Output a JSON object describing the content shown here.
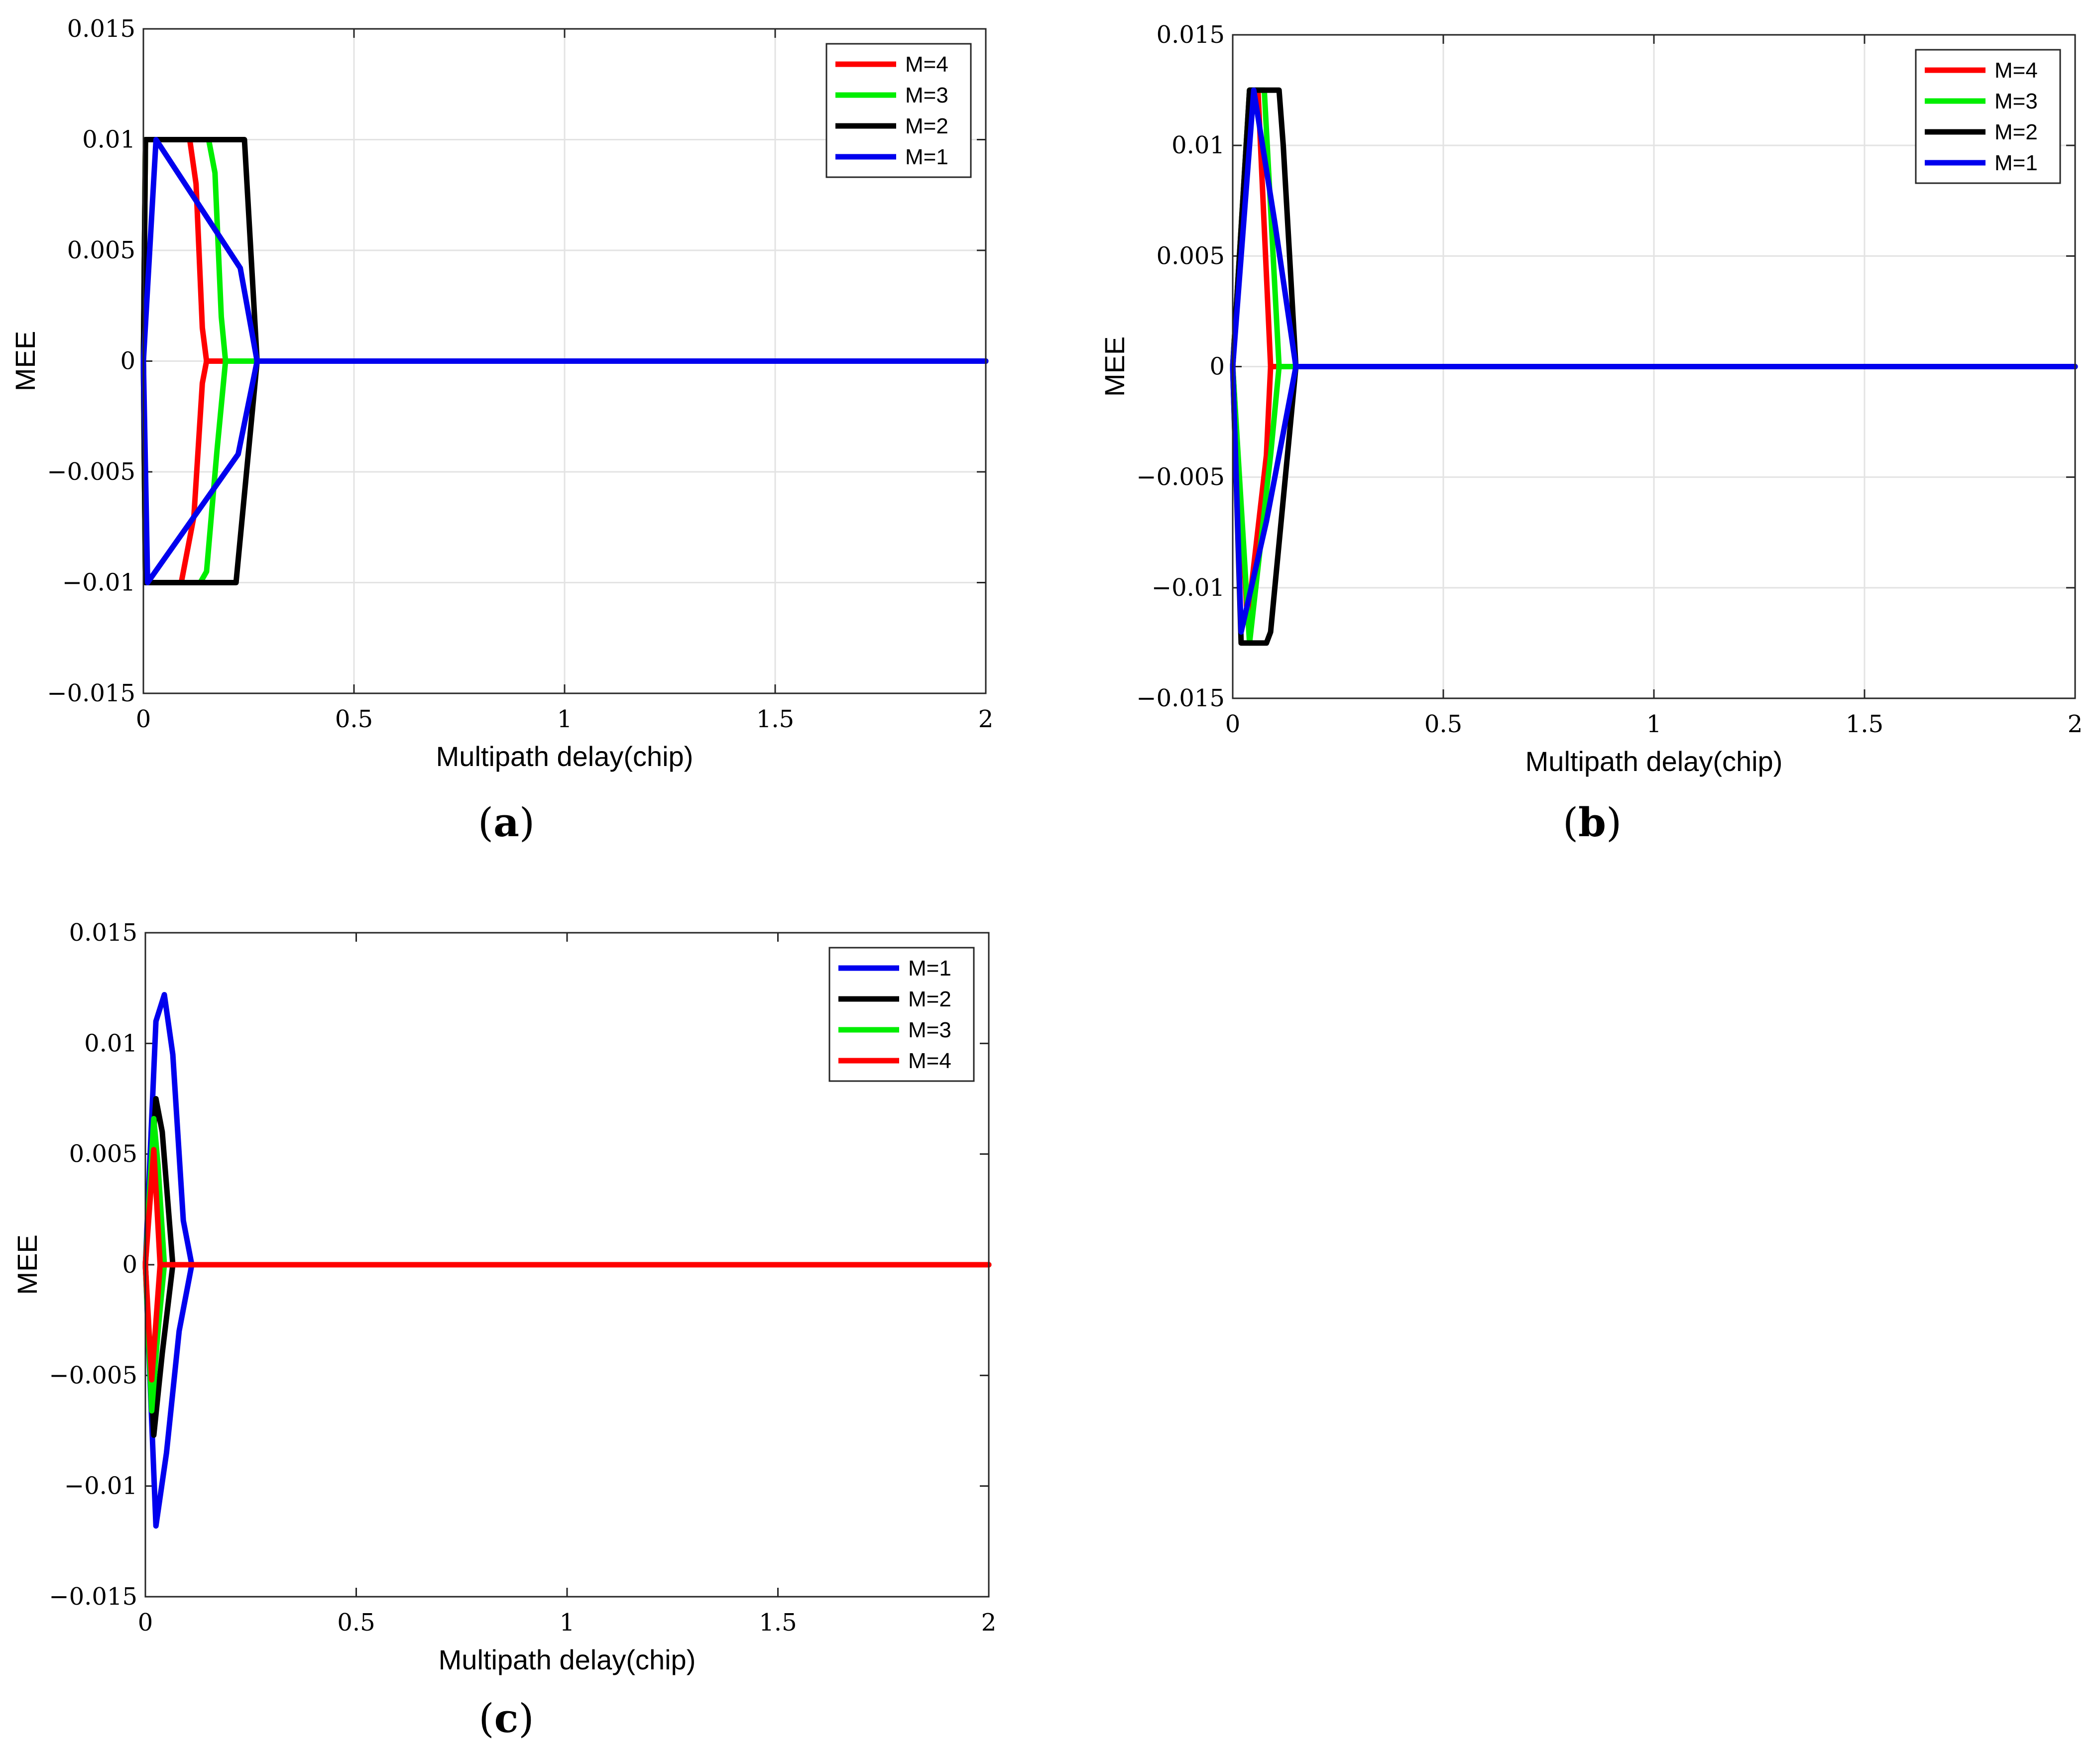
{
  "chart_data": [
    {
      "type": "line",
      "panel": "a",
      "caption_letter": "a",
      "xlabel": "Multipath delay(chip)",
      "ylabel": "MEE",
      "xlim": [
        0,
        2
      ],
      "ylim": [
        -0.015,
        0.015
      ],
      "grid": true,
      "legend_position": "top-right",
      "xticks": [
        0,
        0.5,
        1,
        1.5,
        2
      ],
      "xtick_labels": [
        "0",
        "0.5",
        "1",
        "1.5",
        "2"
      ],
      "yticks": [
        -0.015,
        -0.01,
        -0.005,
        0,
        0.005,
        0.01,
        0.015
      ],
      "ytick_labels": [
        "−0.015",
        "−0.01",
        "−0.005",
        "0",
        "0.005",
        "0.01",
        "0.015"
      ],
      "series": [
        {
          "name": "M=4",
          "color": "#ff0000",
          "upper": [
            [
              0,
              0
            ],
            [
              0.005,
              0.01
            ],
            [
              0.11,
              0.01
            ],
            [
              0.125,
              0.008
            ],
            [
              0.14,
              0.0015
            ],
            [
              0.15,
              0
            ],
            [
              2,
              0
            ]
          ],
          "lower": [
            [
              0,
              0
            ],
            [
              0.005,
              -0.01
            ],
            [
              0.09,
              -0.01
            ],
            [
              0.12,
              -0.007
            ],
            [
              0.14,
              -0.001
            ],
            [
              0.15,
              0
            ]
          ]
        },
        {
          "name": "M=3",
          "color": "#00ee00",
          "upper": [
            [
              0,
              0
            ],
            [
              0.005,
              0.01
            ],
            [
              0.155,
              0.01
            ],
            [
              0.17,
              0.0085
            ],
            [
              0.185,
              0.002
            ],
            [
              0.195,
              0
            ],
            [
              2,
              0
            ]
          ],
          "lower": [
            [
              0,
              0
            ],
            [
              0.005,
              -0.01
            ],
            [
              0.135,
              -0.01
            ],
            [
              0.15,
              -0.0095
            ],
            [
              0.175,
              -0.004
            ],
            [
              0.195,
              0
            ]
          ]
        },
        {
          "name": "M=2",
          "color": "#000000",
          "upper": [
            [
              0,
              0
            ],
            [
              0.005,
              0.01
            ],
            [
              0.24,
              0.01
            ],
            [
              0.27,
              0
            ],
            [
              2,
              0
            ]
          ],
          "lower": [
            [
              0,
              0
            ],
            [
              0.005,
              -0.01
            ],
            [
              0.22,
              -0.01
            ],
            [
              0.27,
              0
            ]
          ]
        },
        {
          "name": "M=1",
          "color": "#0000ee",
          "upper": [
            [
              0,
              0
            ],
            [
              0.03,
              0.01
            ],
            [
              0.23,
              0.0042
            ],
            [
              0.27,
              0
            ],
            [
              2,
              0
            ]
          ],
          "lower": [
            [
              0,
              0
            ],
            [
              0.01,
              -0.01
            ],
            [
              0.225,
              -0.0042
            ],
            [
              0.27,
              0
            ]
          ]
        }
      ]
    },
    {
      "type": "line",
      "panel": "b",
      "caption_letter": "b",
      "xlabel": "Multipath delay(chip)",
      "ylabel": "MEE",
      "xlim": [
        0,
        2
      ],
      "ylim": [
        -0.015,
        0.015
      ],
      "grid": true,
      "legend_position": "top-right",
      "xticks": [
        0,
        0.5,
        1,
        1.5,
        2
      ],
      "xtick_labels": [
        "0",
        "0.5",
        "1",
        "1.5",
        "2"
      ],
      "yticks": [
        -0.015,
        -0.01,
        -0.005,
        0,
        0.005,
        0.01,
        0.015
      ],
      "ytick_labels": [
        "−0.015",
        "−0.01",
        "−0.005",
        "0",
        "0.005",
        "0.01",
        "0.015"
      ],
      "series": [
        {
          "name": "M=4",
          "color": "#ff0000",
          "upper": [
            [
              0,
              0
            ],
            [
              0.04,
              0.0125
            ],
            [
              0.06,
              0.0125
            ],
            [
              0.09,
              0
            ],
            [
              2,
              0
            ]
          ],
          "lower": [
            [
              0,
              0
            ],
            [
              0.035,
              -0.0115
            ],
            [
              0.08,
              -0.004
            ],
            [
              0.09,
              0
            ]
          ]
        },
        {
          "name": "M=3",
          "color": "#00ee00",
          "upper": [
            [
              0,
              0
            ],
            [
              0.04,
              0.0125
            ],
            [
              0.075,
              0.0125
            ],
            [
              0.11,
              0
            ],
            [
              2,
              0
            ]
          ],
          "lower": [
            [
              0,
              0
            ],
            [
              0.04,
              -0.0125
            ],
            [
              0.09,
              -0.004
            ],
            [
              0.11,
              0
            ]
          ]
        },
        {
          "name": "M=2",
          "color": "#000000",
          "upper": [
            [
              0,
              0
            ],
            [
              0.04,
              0.0125
            ],
            [
              0.11,
              0.0125
            ],
            [
              0.12,
              0.01
            ],
            [
              0.15,
              0
            ],
            [
              2,
              0
            ]
          ],
          "lower": [
            [
              0,
              0
            ],
            [
              0.02,
              -0.0125
            ],
            [
              0.08,
              -0.0125
            ],
            [
              0.09,
              -0.012
            ],
            [
              0.15,
              0
            ]
          ]
        },
        {
          "name": "M=1",
          "color": "#0000ee",
          "upper": [
            [
              0,
              0
            ],
            [
              0.05,
              0.0125
            ],
            [
              0.1,
              0.0065
            ],
            [
              0.15,
              0
            ],
            [
              2,
              0
            ]
          ],
          "lower": [
            [
              0,
              0
            ],
            [
              0.02,
              -0.012
            ],
            [
              0.08,
              -0.007
            ],
            [
              0.15,
              0
            ]
          ]
        }
      ]
    },
    {
      "type": "line",
      "panel": "c",
      "caption_letter": "c",
      "xlabel": "Multipath delay(chip)",
      "ylabel": "MEE",
      "xlim": [
        0,
        2
      ],
      "ylim": [
        -0.015,
        0.015
      ],
      "grid": false,
      "legend_position": "top-right",
      "xticks": [
        0,
        0.5,
        1,
        1.5,
        2
      ],
      "xtick_labels": [
        "0",
        "0.5",
        "1",
        "1.5",
        "2"
      ],
      "yticks": [
        -0.015,
        -0.01,
        -0.005,
        0,
        0.005,
        0.01,
        0.015
      ],
      "ytick_labels": [
        "−0.015",
        "−0.01",
        "−0.005",
        "0",
        "0.005",
        "0.01",
        "0.015"
      ],
      "series": [
        {
          "name": "M=1",
          "color": "#0000ee",
          "upper": [
            [
              0,
              0
            ],
            [
              0.025,
              0.011
            ],
            [
              0.045,
              0.0122
            ],
            [
              0.065,
              0.0095
            ],
            [
              0.09,
              0.002
            ],
            [
              0.11,
              0
            ],
            [
              2,
              0
            ]
          ],
          "lower": [
            [
              0,
              0
            ],
            [
              0.025,
              -0.0118
            ],
            [
              0.05,
              -0.0085
            ],
            [
              0.08,
              -0.003
            ],
            [
              0.11,
              0
            ]
          ]
        },
        {
          "name": "M=2",
          "color": "#000000",
          "upper": [
            [
              0,
              0
            ],
            [
              0.025,
              0.0075
            ],
            [
              0.04,
              0.006
            ],
            [
              0.065,
              0
            ],
            [
              2,
              0
            ]
          ],
          "lower": [
            [
              0,
              0
            ],
            [
              0.02,
              -0.0077
            ],
            [
              0.04,
              -0.004
            ],
            [
              0.065,
              0
            ]
          ]
        },
        {
          "name": "M=3",
          "color": "#00ee00",
          "upper": [
            [
              0,
              0
            ],
            [
              0.02,
              0.0066
            ],
            [
              0.03,
              0.0045
            ],
            [
              0.045,
              0
            ],
            [
              2,
              0
            ]
          ],
          "lower": [
            [
              0,
              0
            ],
            [
              0.015,
              -0.0066
            ],
            [
              0.03,
              -0.003
            ],
            [
              0.045,
              0
            ]
          ]
        },
        {
          "name": "M=4",
          "color": "#ff0000",
          "upper": [
            [
              0,
              0
            ],
            [
              0.02,
              0.0052
            ],
            [
              0.035,
              0
            ],
            [
              2,
              0
            ]
          ],
          "lower": [
            [
              0,
              0
            ],
            [
              0.015,
              -0.0052
            ],
            [
              0.035,
              0
            ]
          ]
        }
      ]
    }
  ]
}
